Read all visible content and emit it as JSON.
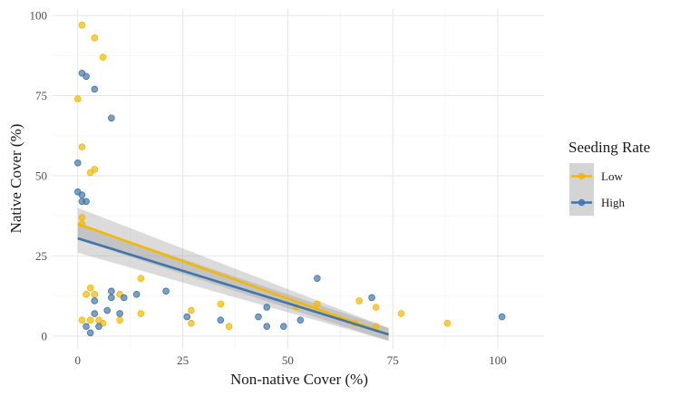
{
  "chart_data": {
    "type": "scatter",
    "xlabel": "Non-native Cover (%)",
    "ylabel": "Native Cover (%)",
    "xlim": [
      -6,
      111
    ],
    "ylim": [
      -4,
      102
    ],
    "xticks": [
      0,
      25,
      50,
      75,
      100
    ],
    "yticks": [
      0,
      25,
      50,
      75,
      100
    ],
    "grid": true,
    "legend": {
      "title": "Seeding Rate",
      "placement": "right"
    },
    "series": [
      {
        "name": "Low",
        "color": "#F5B800",
        "points": [
          [
            1,
            97
          ],
          [
            4,
            93
          ],
          [
            6,
            87
          ],
          [
            0,
            74
          ],
          [
            1,
            59
          ],
          [
            4,
            52
          ],
          [
            3,
            51
          ],
          [
            1,
            37
          ],
          [
            1,
            35
          ],
          [
            15,
            18
          ],
          [
            3,
            15
          ],
          [
            4,
            13
          ],
          [
            2,
            13
          ],
          [
            10,
            13
          ],
          [
            1,
            5
          ],
          [
            3,
            5
          ],
          [
            5,
            5
          ],
          [
            10,
            5
          ],
          [
            15,
            7
          ],
          [
            27,
            8
          ],
          [
            27,
            4
          ],
          [
            34,
            10
          ],
          [
            36,
            3
          ],
          [
            57,
            10
          ],
          [
            52,
            9
          ],
          [
            67,
            11
          ],
          [
            71,
            9
          ],
          [
            66,
            4
          ],
          [
            71,
            3
          ],
          [
            77,
            7
          ],
          [
            88,
            4
          ],
          [
            6,
            4
          ]
        ],
        "fit": {
          "x": [
            0,
            74
          ],
          "y": [
            35,
            0.5
          ],
          "ci_lo": [
            30,
            -1.5
          ],
          "ci_hi": [
            40,
            2.5
          ]
        }
      },
      {
        "name": "High",
        "color": "#3F76AB",
        "points": [
          [
            1,
            82
          ],
          [
            2,
            81
          ],
          [
            4,
            77
          ],
          [
            8,
            68
          ],
          [
            0,
            54
          ],
          [
            0,
            45
          ],
          [
            1,
            44
          ],
          [
            1,
            42
          ],
          [
            2,
            42
          ],
          [
            57,
            18
          ],
          [
            21,
            14
          ],
          [
            8,
            14
          ],
          [
            11,
            12
          ],
          [
            8,
            12
          ],
          [
            14,
            13
          ],
          [
            70,
            12
          ],
          [
            4,
            11
          ],
          [
            4,
            7
          ],
          [
            7,
            8
          ],
          [
            10,
            7
          ],
          [
            43,
            6
          ],
          [
            45,
            9
          ],
          [
            26,
            6
          ],
          [
            34,
            5
          ],
          [
            53,
            5
          ],
          [
            45,
            3
          ],
          [
            49,
            3
          ],
          [
            2,
            3
          ],
          [
            5,
            3
          ],
          [
            3,
            1
          ],
          [
            101,
            6
          ]
        ],
        "fit": {
          "x": [
            0,
            74
          ],
          "y": [
            30.5,
            0.5
          ],
          "ci_lo": [
            26,
            -1.5
          ],
          "ci_hi": [
            35,
            2.5
          ]
        }
      }
    ]
  }
}
